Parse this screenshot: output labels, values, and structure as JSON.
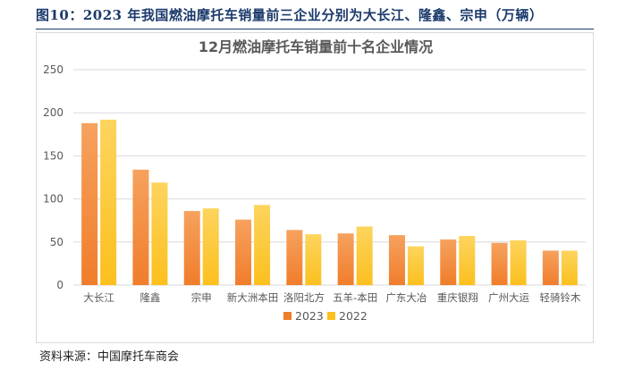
{
  "figure_title": "图10：2023 年我国燃油摩托车销量前三企业分别为大长江、隆鑫、宗申（万辆）",
  "source": "资料来源：中国摩托车商会",
  "colors": {
    "series_2023": "#f07d2b",
    "series_2023_light": "#f6a25e",
    "series_2022": "#fcc01e",
    "series_2022_light": "#fdd45e",
    "title_blue": "#1b3a6b"
  },
  "chart_data": {
    "type": "bar",
    "title": "12月燃油摩托车销量前十名企业情况",
    "xlabel": "",
    "ylabel": "",
    "ylim": [
      0,
      250
    ],
    "yticks": [
      0,
      50,
      100,
      150,
      200,
      250
    ],
    "grid": true,
    "legend_position": "bottom-center",
    "categories": [
      "大长江",
      "隆鑫",
      "宗申",
      "新大洲本田",
      "洛阳北方",
      "五羊-本田",
      "广东大冶",
      "重庆银翔",
      "广州大运",
      "轻骑铃木"
    ],
    "series": [
      {
        "name": "2023",
        "values": [
          188,
          134,
          86,
          76,
          64,
          60,
          58,
          53,
          49,
          40
        ]
      },
      {
        "name": "2022",
        "values": [
          192,
          119,
          89,
          93,
          59,
          68,
          45,
          57,
          52,
          40
        ]
      }
    ]
  }
}
